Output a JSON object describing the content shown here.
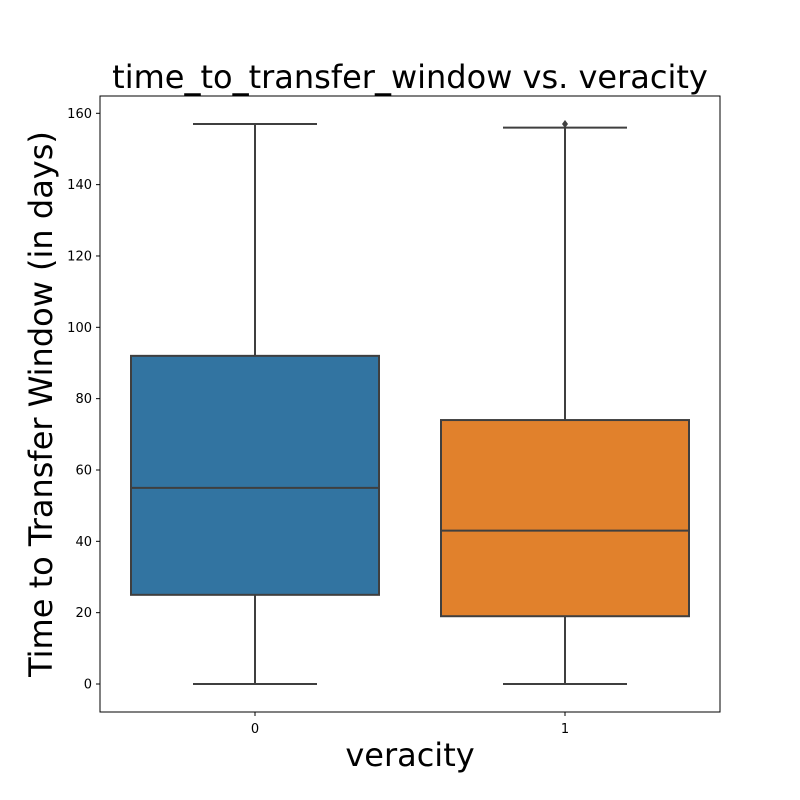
{
  "chart_data": {
    "type": "box",
    "title": "time_to_transfer_window vs. veracity",
    "xlabel": "veracity",
    "ylabel": "Time to Transfer Window (in days)",
    "ylim": [
      -7.85,
      164.85
    ],
    "yticks": [
      0,
      20,
      40,
      60,
      80,
      100,
      120,
      140,
      160
    ],
    "grid": false,
    "categories": [
      "0",
      "1"
    ],
    "boxes": [
      {
        "category": "0",
        "whisker_low": 0,
        "q1": 25,
        "median": 55,
        "q3": 92,
        "whisker_high": 157,
        "outliers": [],
        "color": "#3274a1"
      },
      {
        "category": "1",
        "whisker_low": 0,
        "q1": 19,
        "median": 43,
        "q3": 74,
        "whisker_high": 156,
        "outliers": [
          157
        ],
        "color": "#e1812c"
      }
    ],
    "line_color": "#3f3f3f"
  }
}
